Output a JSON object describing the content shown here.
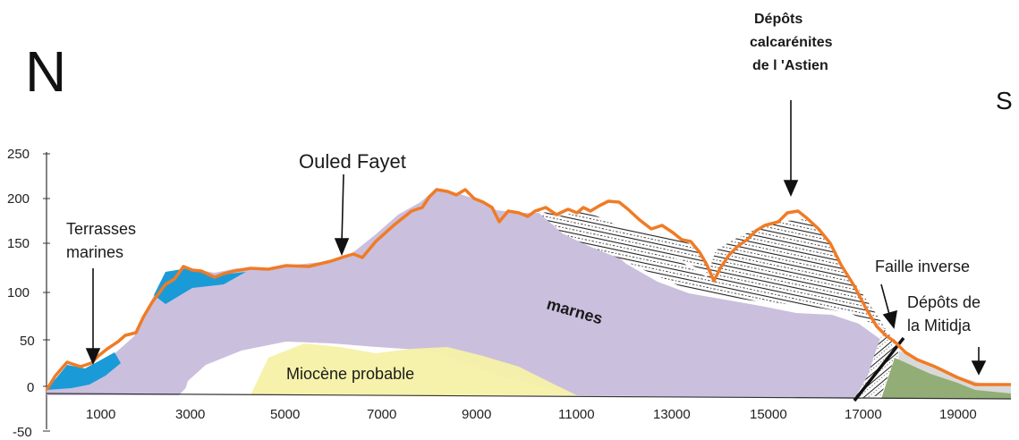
{
  "directions": {
    "north": "N",
    "south": "S"
  },
  "labels": {
    "ouled_fayet": "Ouled Fayet",
    "depots_astien": [
      "Dépôts",
      "calcarénites",
      "de l 'Astien"
    ],
    "terrasses": [
      "Terrasses",
      "marines"
    ],
    "faille": "Faille inverse",
    "mitidja": [
      "Dépôts de",
      "la Mitidja"
    ],
    "marnes": "marnes",
    "miocene": "Miocène probable"
  },
  "colors": {
    "profile": "#f07b25",
    "marnes": "#cbbfde",
    "terrasses": "#1a9bd7",
    "miocene": "#f6f1a6",
    "mitidja": "#93ad76",
    "fault": "#111111"
  },
  "chart_data": {
    "type": "area",
    "x": [
      0,
      500,
      1000,
      1500,
      2000,
      2500,
      3000,
      3500,
      4000,
      4500,
      5000,
      5500,
      6000,
      6500,
      7000,
      7500,
      8000,
      8500,
      9000,
      9500,
      10000,
      10500,
      11000,
      11500,
      12000,
      12500,
      13000,
      13500,
      14000,
      14500,
      15000,
      15500,
      16000,
      16500,
      17000,
      17500,
      18000,
      18500,
      19000,
      19500
    ],
    "y": [
      0,
      28,
      32,
      48,
      60,
      108,
      125,
      118,
      122,
      124,
      128,
      130,
      138,
      155,
      183,
      198,
      210,
      205,
      195,
      185,
      182,
      178,
      188,
      178,
      158,
      150,
      138,
      118,
      155,
      170,
      182,
      185,
      165,
      110,
      70,
      45,
      25,
      15,
      8,
      5
    ],
    "xticks": [
      "1000",
      "3000",
      "5000",
      "7000",
      "9000",
      "11000",
      "13000",
      "15000",
      "17000",
      "19000"
    ],
    "yticks": [
      "250",
      "200",
      "150",
      "100",
      "50",
      "0",
      "-50"
    ],
    "xlim": [
      0,
      20000
    ],
    "ylim": [
      -50,
      250
    ]
  }
}
